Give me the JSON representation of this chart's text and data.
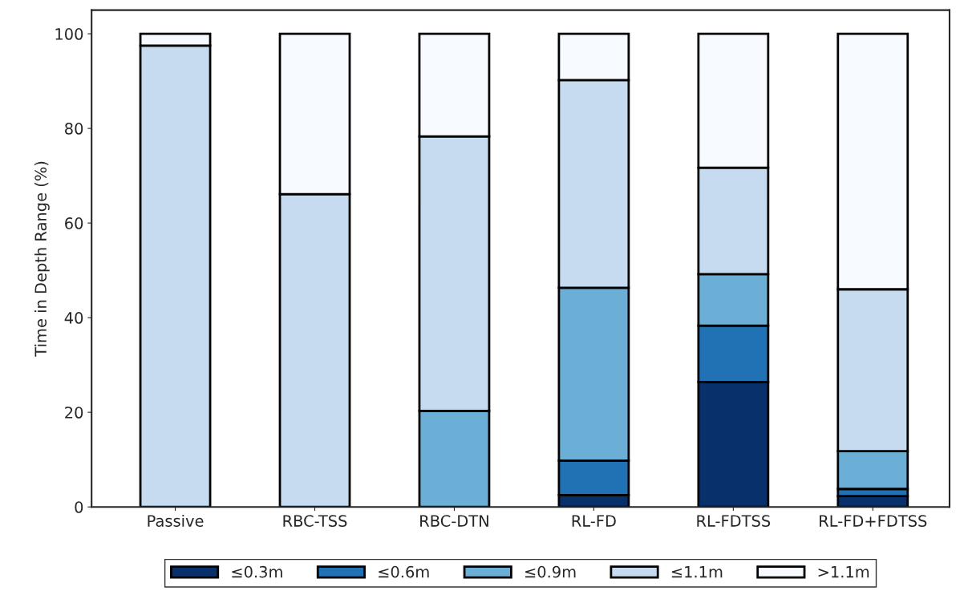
{
  "chart_data": {
    "type": "bar",
    "stacked": true,
    "ylabel": "Time in Depth Range (%)",
    "categories": [
      "Passive",
      "RBC-TSS",
      "RBC-DTN",
      "RL-FD",
      "RL-FDTSS",
      "RL-FD+FDTSS"
    ],
    "series": [
      {
        "name": "≤0.3m",
        "color": "#08306b",
        "values": [
          0,
          0,
          0,
          2.5,
          26.4,
          2.3
        ]
      },
      {
        "name": "≤0.6m",
        "color": "#2171b5",
        "values": [
          0,
          0,
          0,
          7.3,
          11.9,
          1.5
        ]
      },
      {
        "name": "≤0.9m",
        "color": "#6baed6",
        "values": [
          null,
          null,
          20.3,
          36.5,
          10.9,
          8.0
        ]
      },
      {
        "name": "≤1.1m",
        "color": "#c6dbef",
        "values": [
          97.5,
          66.1,
          58.0,
          43.9,
          22.5,
          34.2
        ]
      },
      {
        "name": ">1.1m",
        "color": "#f7fbff",
        "values": [
          2.5,
          33.9,
          21.7,
          9.8,
          28.3,
          54.0
        ]
      }
    ],
    "ylim": [
      0,
      105
    ],
    "yticks": [
      0,
      20,
      40,
      60,
      80,
      100
    ],
    "grid": false,
    "legend": "bottom"
  }
}
